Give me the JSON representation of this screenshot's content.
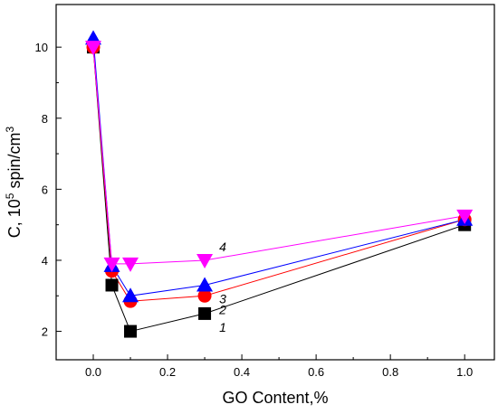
{
  "chart_data": {
    "type": "scatter",
    "title": "",
    "xlabel": "GO Content,%",
    "ylabel_parts": {
      "base": "C, 10",
      "sup1": "5",
      "mid": " spin/cm",
      "sup2": "3"
    },
    "xlim": [
      -0.1,
      1.08
    ],
    "ylim": [
      1.2,
      11.2
    ],
    "x_ticks": [
      {
        "value": 0.0,
        "label": "0.0"
      },
      {
        "value": 0.2,
        "label": "0.2"
      },
      {
        "value": 0.4,
        "label": "0.4"
      },
      {
        "value": 0.6,
        "label": "0.6"
      },
      {
        "value": 0.8,
        "label": "0.8"
      },
      {
        "value": 1.0,
        "label": "1.0"
      }
    ],
    "y_ticks": [
      {
        "value": 2,
        "label": "2"
      },
      {
        "value": 4,
        "label": "4"
      },
      {
        "value": 6,
        "label": "6"
      },
      {
        "value": 8,
        "label": "8"
      },
      {
        "value": 10,
        "label": "10"
      }
    ],
    "grid": false,
    "series": [
      {
        "label": "1",
        "marker": "square",
        "color": "#000000",
        "line_color": "#000000",
        "x": [
          0.0,
          0.05,
          0.1,
          0.3,
          1.0
        ],
        "y": [
          10.0,
          3.3,
          2.0,
          2.5,
          5.0
        ]
      },
      {
        "label": "2",
        "marker": "circle",
        "color": "#ff0000",
        "line_color": "#ff0000",
        "x": [
          0.0,
          0.05,
          0.1,
          0.3,
          1.0
        ],
        "y": [
          10.0,
          3.7,
          2.85,
          3.0,
          5.15
        ]
      },
      {
        "label": "3",
        "marker": "triangle-up",
        "color": "#0000ff",
        "line_color": "#0000ff",
        "x": [
          0.0,
          0.05,
          0.1,
          0.3,
          1.0
        ],
        "y": [
          10.25,
          3.85,
          3.0,
          3.3,
          5.15
        ]
      },
      {
        "label": "4",
        "marker": "triangle-down",
        "color": "#ff00ff",
        "line_color": "#ff00ff",
        "x": [
          0.0,
          0.05,
          0.1,
          0.3,
          1.0
        ],
        "y": [
          10.0,
          3.9,
          3.9,
          4.0,
          5.25
        ]
      }
    ],
    "annotations": [
      {
        "text": "1",
        "series": 0,
        "at_x": 0.3,
        "dy": 1
      },
      {
        "text": "2",
        "series": 1,
        "at_x": 0.3,
        "dy": 1
      },
      {
        "text": "3",
        "series": 2,
        "at_x": 0.3,
        "dy": 1
      },
      {
        "text": "4",
        "series": 3,
        "at_x": 0.3,
        "dy": -1
      }
    ]
  }
}
